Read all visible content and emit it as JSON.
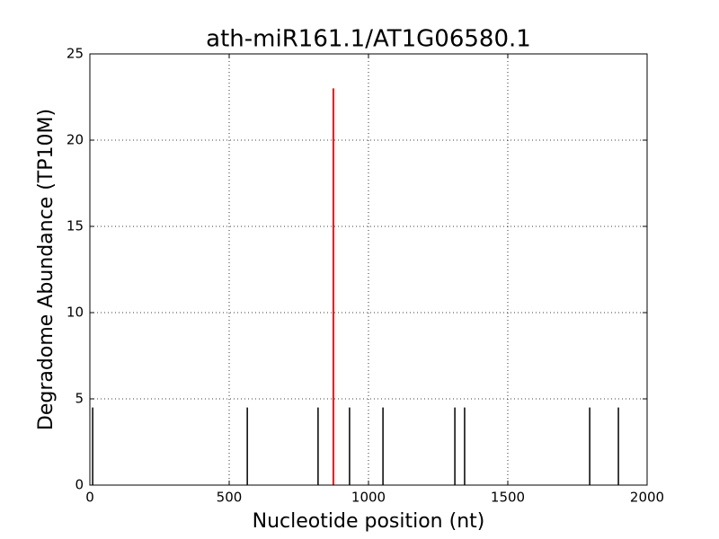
{
  "chart_data": {
    "type": "stem",
    "title": "ath-miR161.1/AT1G06580.1",
    "xlabel": "Nucleotide position (nt)",
    "ylabel": "Degradome Abundance (TP10M)",
    "series": [
      {
        "color": "#000000",
        "x": [
          10,
          565,
          819,
          932,
          1052,
          1310,
          1345,
          1794,
          1897
        ],
        "values": [
          4.5,
          4.5,
          4.5,
          4.5,
          4.5,
          4.5,
          4.5,
          4.5,
          4.5
        ]
      },
      {
        "color": "#ff0000",
        "x": [
          874
        ],
        "values": [
          23
        ]
      }
    ],
    "xlim": [
      0,
      2000
    ],
    "xticks": [
      0,
      500,
      1000,
      1500,
      2000
    ],
    "ylim": [
      0,
      25
    ],
    "yticks": [
      0,
      5,
      10,
      15,
      20,
      25
    ],
    "grid": true
  }
}
